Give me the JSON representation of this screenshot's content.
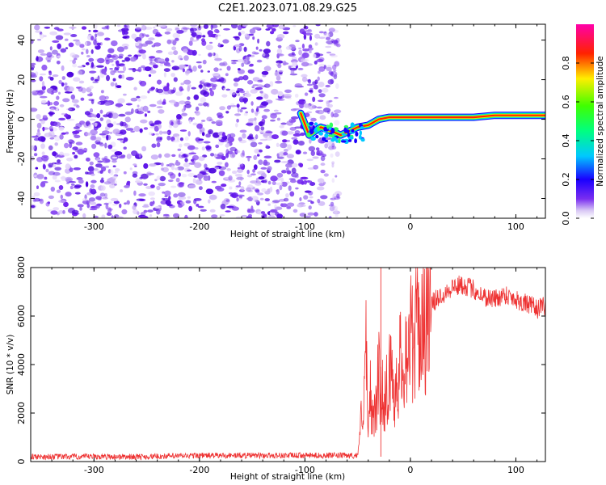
{
  "figure_title": "C2E1.2023.071.08.29.G25",
  "chart_data": [
    {
      "type": "heatmap",
      "xlabel": "Height of straight line (km)",
      "ylabel": "Frequency (Hz)",
      "xlim": [
        -360,
        128
      ],
      "ylim": [
        -50,
        48
      ],
      "xticks": [
        -300,
        -200,
        -100,
        0,
        100
      ],
      "yticks": [
        -40,
        -20,
        0,
        20,
        40
      ],
      "grid": false,
      "noise_region_x": [
        -360,
        -68
      ],
      "ridge": [
        {
          "x": -104,
          "y": 3
        },
        {
          "x": -96,
          "y": -8
        },
        {
          "x": -85,
          "y": -4
        },
        {
          "x": -75,
          "y": -6
        },
        {
          "x": -66,
          "y": -8
        },
        {
          "x": -58,
          "y": -6
        },
        {
          "x": -50,
          "y": -4
        },
        {
          "x": -40,
          "y": -3
        },
        {
          "x": -30,
          "y": 0
        },
        {
          "x": -20,
          "y": 1
        },
        {
          "x": 0,
          "y": 1
        },
        {
          "x": 20,
          "y": 1
        },
        {
          "x": 40,
          "y": 1
        },
        {
          "x": 60,
          "y": 1
        },
        {
          "x": 80,
          "y": 2
        },
        {
          "x": 100,
          "y": 2
        },
        {
          "x": 128,
          "y": 2
        }
      ],
      "colorbar": {
        "label": "Normalized spectral amplitude",
        "min": 0,
        "max": 1,
        "ticks": [
          0.0,
          0.2,
          0.4,
          0.6,
          0.8
        ],
        "tick_labels": [
          "0.0",
          "0.2",
          "0.4",
          "0.6",
          "0.8"
        ],
        "colormap": "hsv-like (white to purple, blue, cyan, green, yellow, red, magenta)"
      }
    },
    {
      "type": "line",
      "xlabel": "Height of straight line (km)",
      "ylabel": "SNR (10 * v/v)",
      "xlim": [
        -360,
        128
      ],
      "ylim": [
        0,
        8000
      ],
      "xticks": [
        -300,
        -200,
        -100,
        0,
        100
      ],
      "yticks": [
        0,
        2000,
        4000,
        6000,
        8000
      ],
      "grid": false,
      "series": [
        {
          "color": "#ee3333",
          "x": [
            -360,
            -300,
            -250,
            -200,
            -150,
            -100,
            -60,
            -50,
            -45,
            -42,
            -40,
            -38,
            -35,
            -30,
            -25,
            -20,
            -15,
            -10,
            -5,
            0,
            10,
            20,
            30,
            40,
            50,
            60,
            70,
            80,
            90,
            100,
            110,
            120,
            128
          ],
          "y": [
            200,
            200,
            200,
            250,
            250,
            250,
            250,
            250,
            2500,
            4500,
            800,
            3000,
            1500,
            3500,
            2500,
            3600,
            3000,
            4000,
            4500,
            5000,
            5700,
            6500,
            6900,
            7200,
            7300,
            7100,
            6800,
            6700,
            6900,
            6700,
            6500,
            6300,
            6400
          ]
        }
      ]
    }
  ]
}
